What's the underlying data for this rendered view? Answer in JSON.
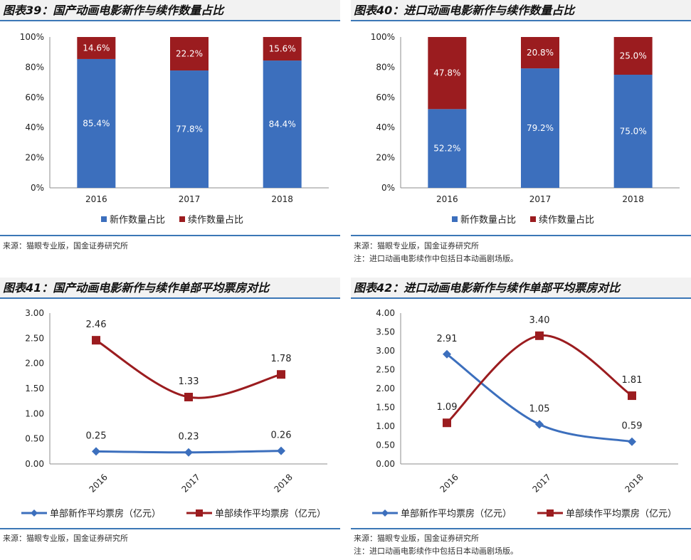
{
  "colors": {
    "new": "#3c6fbd",
    "seq": "#9b1c1f",
    "rule": "#3b77b6"
  },
  "panels": [
    {
      "title": "图表39：国产动画电影新作与续作数量占比",
      "source": "来源：猫眼专业版，国金证券研究所",
      "note": "",
      "chart_data": {
        "type": "bar",
        "stacked": true,
        "categories": [
          "2016",
          "2017",
          "2018"
        ],
        "series": [
          {
            "name": "新作数量占比",
            "values": [
              85.4,
              77.8,
              84.4
            ],
            "labels": [
              "85.4%",
              "77.8%",
              "84.4%"
            ]
          },
          {
            "name": "续作数量占比",
            "values": [
              14.6,
              22.2,
              15.6
            ],
            "labels": [
              "14.6%",
              "22.2%",
              "15.6%"
            ]
          }
        ],
        "ylim": [
          0,
          100
        ],
        "yticks": [
          "0%",
          "20%",
          "40%",
          "60%",
          "80%",
          "100%"
        ],
        "legend": "bottom"
      }
    },
    {
      "title": "图表40：进口动画电影新作与续作数量占比",
      "source": "来源：猫眼专业版，国金证券研究所",
      "note": "注：进口动画电影续作中包括日本动画剧场版。",
      "chart_data": {
        "type": "bar",
        "stacked": true,
        "categories": [
          "2016",
          "2017",
          "2018"
        ],
        "series": [
          {
            "name": "新作数量占比",
            "values": [
              52.2,
              79.2,
              75.0
            ],
            "labels": [
              "52.2%",
              "79.2%",
              "75.0%"
            ]
          },
          {
            "name": "续作数量占比",
            "values": [
              47.8,
              20.8,
              25.0
            ],
            "labels": [
              "47.8%",
              "20.8%",
              "25.0%"
            ]
          }
        ],
        "ylim": [
          0,
          100
        ],
        "yticks": [
          "0%",
          "20%",
          "40%",
          "60%",
          "80%",
          "100%"
        ],
        "legend": "bottom"
      }
    },
    {
      "title": "图表41：国产动画电影新作与续作单部平均票房对比",
      "source": "来源：猫眼专业版，国金证券研究所",
      "note": "",
      "chart_data": {
        "type": "line",
        "categories": [
          "2016",
          "2017",
          "2018"
        ],
        "series": [
          {
            "name": "单部新作平均票房（亿元）",
            "marker": "diamond",
            "values": [
              0.25,
              0.23,
              0.26
            ],
            "labels": [
              "0.25",
              "0.23",
              "0.26"
            ]
          },
          {
            "name": "单部续作平均票房（亿元）",
            "marker": "square",
            "values": [
              2.46,
              1.33,
              1.78
            ],
            "labels": [
              "2.46",
              "1.33",
              "1.78"
            ]
          }
        ],
        "ylim": [
          0,
          3
        ],
        "yticks": [
          "0.00",
          "0.50",
          "1.00",
          "1.50",
          "2.00",
          "2.50",
          "3.00"
        ],
        "legend": "bottom"
      }
    },
    {
      "title": "图表42：进口动画电影新作与续作单部平均票房对比",
      "source": "来源：猫眼专业版，国金证券研究所",
      "note": "注：进口动画电影续作中包括日本动画剧场版。",
      "chart_data": {
        "type": "line",
        "categories": [
          "2016",
          "2017",
          "2018"
        ],
        "series": [
          {
            "name": "单部新作平均票房（亿元）",
            "marker": "diamond",
            "values": [
              2.91,
              1.05,
              0.59
            ],
            "labels": [
              "2.91",
              "1.05",
              "0.59"
            ]
          },
          {
            "name": "单部续作平均票房（亿元）",
            "marker": "square",
            "values": [
              1.09,
              3.4,
              1.81
            ],
            "labels": [
              "1.09",
              "3.40",
              "1.81"
            ]
          }
        ],
        "ylim": [
          0,
          4
        ],
        "yticks": [
          "0.00",
          "0.50",
          "1.00",
          "1.50",
          "2.00",
          "2.50",
          "3.00",
          "3.50",
          "4.00"
        ],
        "legend": "bottom"
      }
    }
  ]
}
